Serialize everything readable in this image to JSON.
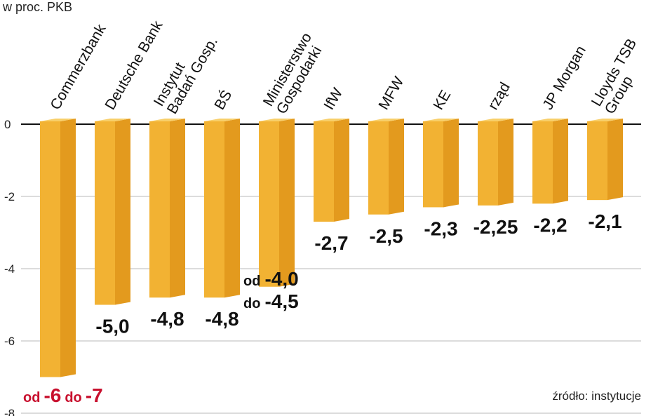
{
  "chart_data": {
    "type": "bar",
    "unit_label": "w proc. PKB",
    "source": "źródło: instytucje",
    "yticks": [
      "0",
      "-2",
      "-4",
      "-6",
      "-8"
    ],
    "ylim": [
      -8,
      0
    ],
    "grid": true,
    "colors": {
      "bar_front": "#F2B233",
      "bar_side": "#E39A1E",
      "bar_top": "#F8CF6A",
      "highlight_label": "#C8102E"
    },
    "bars": [
      {
        "name": "Commerzbank",
        "lines": [
          "Commerzbank"
        ],
        "value": -7,
        "label_parts": [
          "od",
          "-6",
          "do",
          "-7"
        ],
        "highlight": true
      },
      {
        "name": "Deutsche Bank",
        "lines": [
          "Deutsche Bank"
        ],
        "value": -5.0,
        "label": "-5,0"
      },
      {
        "name": "Instytut Badań Gosp.",
        "lines": [
          "Instytut",
          "Badań Gosp."
        ],
        "value": -4.8,
        "label": "-4,8"
      },
      {
        "name": "BŚ",
        "lines": [
          "BŚ"
        ],
        "value": -4.8,
        "label": "-4,8"
      },
      {
        "name": "Ministerstwo Gospodarki",
        "lines": [
          "Ministerstwo",
          "Gospodarki"
        ],
        "value": -4.5,
        "label_parts": [
          "od",
          "-4,0",
          "do",
          "-4,5"
        ]
      },
      {
        "name": "IfW",
        "lines": [
          "IfW"
        ],
        "value": -2.7,
        "label": "-2,7"
      },
      {
        "name": "MFW",
        "lines": [
          "MFW"
        ],
        "value": -2.5,
        "label": "-2,5"
      },
      {
        "name": "KE",
        "lines": [
          "KE"
        ],
        "value": -2.3,
        "label": "-2,3"
      },
      {
        "name": "rząd",
        "lines": [
          "rząd"
        ],
        "value": -2.25,
        "label": "-2,25"
      },
      {
        "name": "JP Morgan",
        "lines": [
          "JP Morgan"
        ],
        "value": -2.2,
        "label": "-2,2"
      },
      {
        "name": "Lloyds TSB Group",
        "lines": [
          "Lloyds TSB",
          "Group"
        ],
        "value": -2.1,
        "label": "-2,1"
      }
    ]
  }
}
